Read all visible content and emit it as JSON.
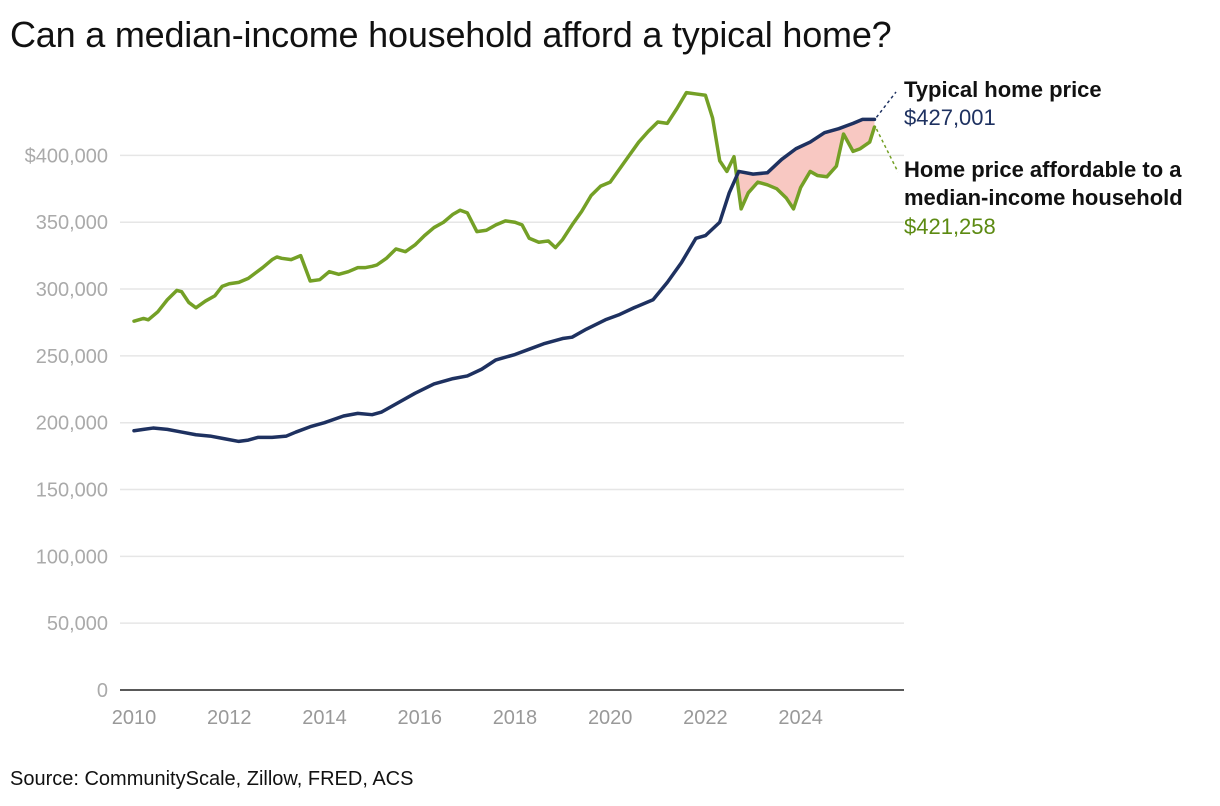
{
  "title": "Can a median-income household afford a typical home?",
  "source": "Source: CommunityScale, Zillow, FRED, ACS",
  "chart_data": {
    "type": "line",
    "title": "Can a median-income household afford a typical home?",
    "xlabel": "",
    "ylabel": "",
    "xlim": [
      2010,
      2025.75
    ],
    "ylim": [
      0,
      425000
    ],
    "grid": true,
    "y_ticks": [
      {
        "value": 0,
        "label": "0"
      },
      {
        "value": 50000,
        "label": "50,000"
      },
      {
        "value": 100000,
        "label": "100,000"
      },
      {
        "value": 150000,
        "label": "150,000"
      },
      {
        "value": 200000,
        "label": "200,000"
      },
      {
        "value": 250000,
        "label": "250,000"
      },
      {
        "value": 300000,
        "label": "300,000"
      },
      {
        "value": 350000,
        "label": "350,000"
      },
      {
        "value": 400000,
        "label": "$400,000"
      }
    ],
    "x_ticks": [
      "2010",
      "2012",
      "2014",
      "2016",
      "2018",
      "2020",
      "2022",
      "2024"
    ],
    "colors": {
      "home": "#1e3160",
      "affordable": "#74a026",
      "gap": "#f8c8c2",
      "grid": "#e6e6e6",
      "axis": "#222222"
    },
    "series": [
      {
        "name": "Typical home price",
        "key": "home",
        "end_label": "$427,001",
        "x": [
          2010.0,
          2010.2,
          2010.4,
          2010.7,
          2011.0,
          2011.3,
          2011.6,
          2011.9,
          2012.2,
          2012.4,
          2012.6,
          2012.9,
          2013.2,
          2013.4,
          2013.7,
          2014.0,
          2014.4,
          2014.7,
          2015.0,
          2015.2,
          2015.5,
          2015.9,
          2016.3,
          2016.7,
          2017.0,
          2017.3,
          2017.6,
          2018.0,
          2018.3,
          2018.6,
          2019.0,
          2019.2,
          2019.5,
          2019.9,
          2020.2,
          2020.5,
          2020.9,
          2021.2,
          2021.5,
          2021.8,
          2022.0,
          2022.3,
          2022.5,
          2022.7,
          2023.0,
          2023.3,
          2023.6,
          2023.9,
          2024.2,
          2024.5,
          2024.8,
          2025.1,
          2025.3,
          2025.55
        ],
        "values": [
          194000,
          195000,
          196000,
          195000,
          193000,
          191000,
          190000,
          188000,
          186000,
          187000,
          189000,
          189000,
          190000,
          193000,
          197000,
          200000,
          205000,
          207000,
          206000,
          208000,
          214000,
          222000,
          229000,
          233000,
          235000,
          240000,
          247000,
          251000,
          255000,
          259000,
          263000,
          264000,
          270000,
          277000,
          281000,
          286000,
          292000,
          305000,
          320000,
          338000,
          340000,
          350000,
          372000,
          388000,
          386000,
          387000,
          397000,
          405000,
          410000,
          417000,
          420000,
          424000,
          427000,
          427001
        ]
      },
      {
        "name": "Home price affordable to a median-income household",
        "key": "affordable",
        "end_label": "$421,258",
        "x": [
          2010.0,
          2010.2,
          2010.3,
          2010.5,
          2010.7,
          2010.9,
          2011.0,
          2011.15,
          2011.3,
          2011.5,
          2011.7,
          2011.85,
          2012.0,
          2012.2,
          2012.4,
          2012.55,
          2012.7,
          2012.9,
          2013.0,
          2013.1,
          2013.3,
          2013.5,
          2013.7,
          2013.9,
          2014.1,
          2014.3,
          2014.5,
          2014.7,
          2014.85,
          2015.0,
          2015.1,
          2015.3,
          2015.5,
          2015.7,
          2015.9,
          2016.1,
          2016.3,
          2016.5,
          2016.7,
          2016.85,
          2017.0,
          2017.2,
          2017.4,
          2017.6,
          2017.8,
          2018.0,
          2018.15,
          2018.3,
          2018.5,
          2018.7,
          2018.85,
          2019.0,
          2019.2,
          2019.4,
          2019.6,
          2019.8,
          2020.0,
          2020.2,
          2020.4,
          2020.6,
          2020.8,
          2021.0,
          2021.2,
          2021.4,
          2021.6,
          2021.8,
          2022.0,
          2022.15,
          2022.3,
          2022.45,
          2022.6,
          2022.75,
          2022.9,
          2023.1,
          2023.3,
          2023.5,
          2023.7,
          2023.85,
          2024.0,
          2024.2,
          2024.35,
          2024.55,
          2024.75,
          2024.9,
          2025.1,
          2025.25,
          2025.45,
          2025.55
        ],
        "values": [
          276000,
          278000,
          277000,
          283000,
          292000,
          299000,
          298000,
          290000,
          286000,
          291000,
          295000,
          302000,
          304000,
          305000,
          308000,
          312000,
          316000,
          322000,
          324000,
          323000,
          322000,
          325000,
          306000,
          307000,
          313000,
          311000,
          313000,
          316000,
          316000,
          317000,
          318000,
          323000,
          330000,
          328000,
          333000,
          340000,
          346000,
          350000,
          356000,
          359000,
          357000,
          343000,
          344000,
          348000,
          351000,
          350000,
          348000,
          338000,
          335000,
          336000,
          331000,
          337000,
          348000,
          358000,
          370000,
          377000,
          380000,
          390000,
          400000,
          410000,
          418000,
          425000,
          424000,
          435000,
          447000,
          446000,
          445000,
          428000,
          396000,
          388000,
          399000,
          360000,
          372000,
          380000,
          378000,
          375000,
          368000,
          360000,
          376000,
          388000,
          385000,
          384000,
          392000,
          416000,
          403000,
          405000,
          410000,
          421258
        ]
      }
    ],
    "annotations": {
      "home_label": "Typical home price",
      "home_value": "$427,001",
      "affordable_label_line1": "Home price affordable to a",
      "affordable_label_line2": "median-income household",
      "affordable_value": "$421,258"
    }
  }
}
